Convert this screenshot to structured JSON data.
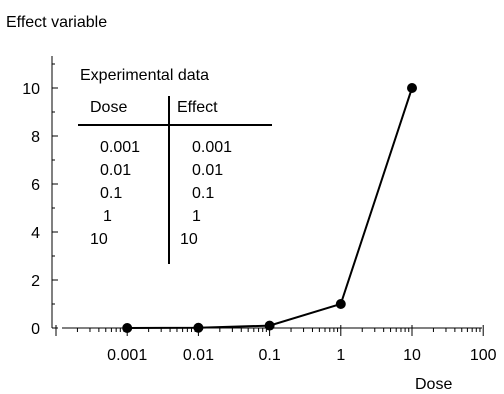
{
  "chart_data": {
    "type": "line",
    "ylabel": "Effect variable",
    "xlabel": "Dose",
    "x_scale": "log",
    "xlim": [
      0.001,
      100
    ],
    "ylim": [
      0,
      11
    ],
    "x_tick_labels": [
      "0.001",
      "0.01",
      "0.1",
      "1",
      "10",
      "100"
    ],
    "y_tick_labels": [
      "0",
      "2",
      "4",
      "6",
      "8",
      "10"
    ],
    "series": [
      {
        "x": [
          0.001,
          0.01,
          0.1,
          1,
          10
        ],
        "y": [
          0.001,
          0.01,
          0.1,
          1,
          10
        ]
      }
    ],
    "table": {
      "title": "Experimental data",
      "headers": [
        "Dose",
        "Effect"
      ],
      "rows": [
        [
          "0.001",
          "0.001"
        ],
        [
          "0.01",
          "0.01"
        ],
        [
          "0.1",
          "0.1"
        ],
        [
          "1",
          "1"
        ],
        [
          "10",
          "10"
        ]
      ]
    },
    "grid": false,
    "line_color": "#000000",
    "marker_color": "#000000"
  }
}
